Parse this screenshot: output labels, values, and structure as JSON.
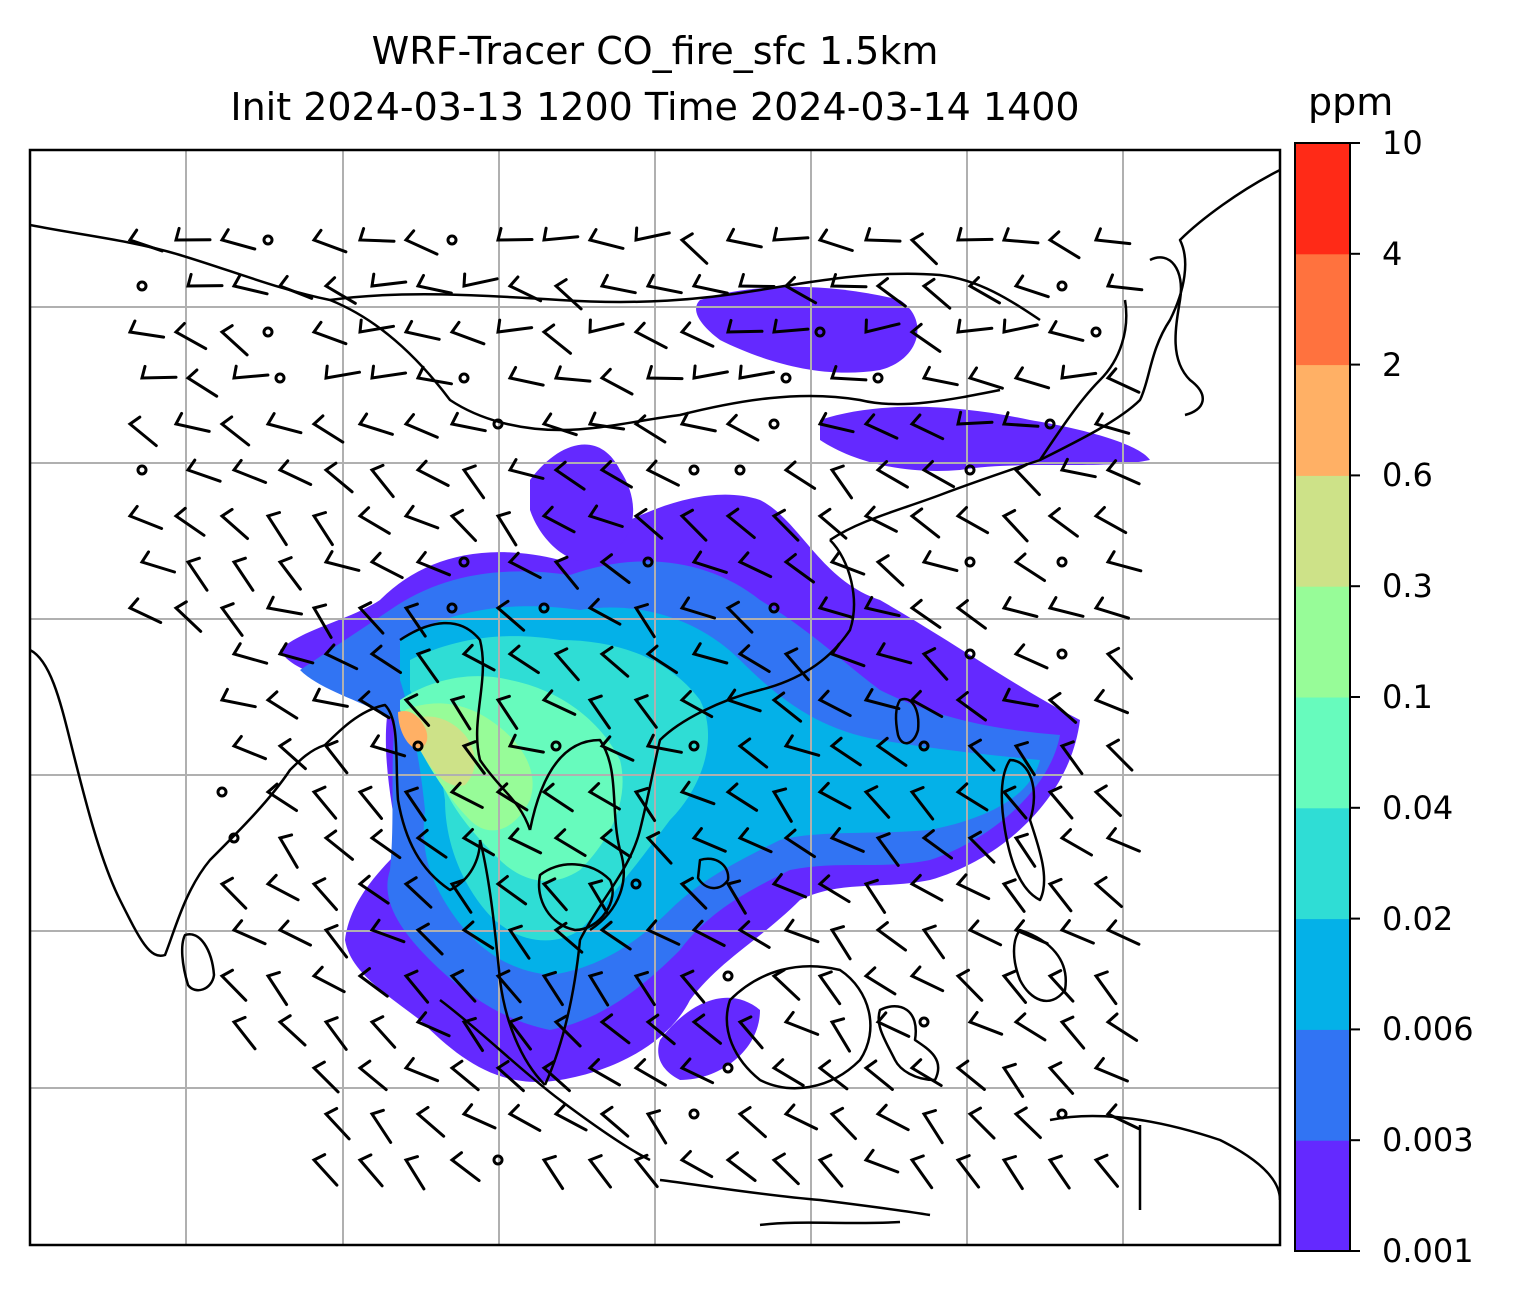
{
  "title": {
    "line1": "WRF-Tracer CO_fire_sfc 1.5km",
    "line2": "Init 2024-03-13 1200 Time 2024-03-14 1400"
  },
  "colorbar": {
    "unit": "ppm",
    "levels": [
      "0.001",
      "0.003",
      "0.006",
      "0.02",
      "0.04",
      "0.1",
      "0.3",
      "0.6",
      "2",
      "4",
      "10"
    ],
    "colors": [
      "#6429ff",
      "#3174f3",
      "#04b1e8",
      "#2fddd5",
      "#67fbbd",
      "#97fc98",
      "#cde288",
      "#ffb065",
      "#ff723e",
      "#ff2a17"
    ]
  },
  "map": {
    "variable": "CO_fire_sfc",
    "height": "1.5km",
    "features": [
      "coastlines",
      "country borders",
      "lat/lon gridlines",
      "wind barbs",
      "calm-wind circles"
    ]
  }
}
